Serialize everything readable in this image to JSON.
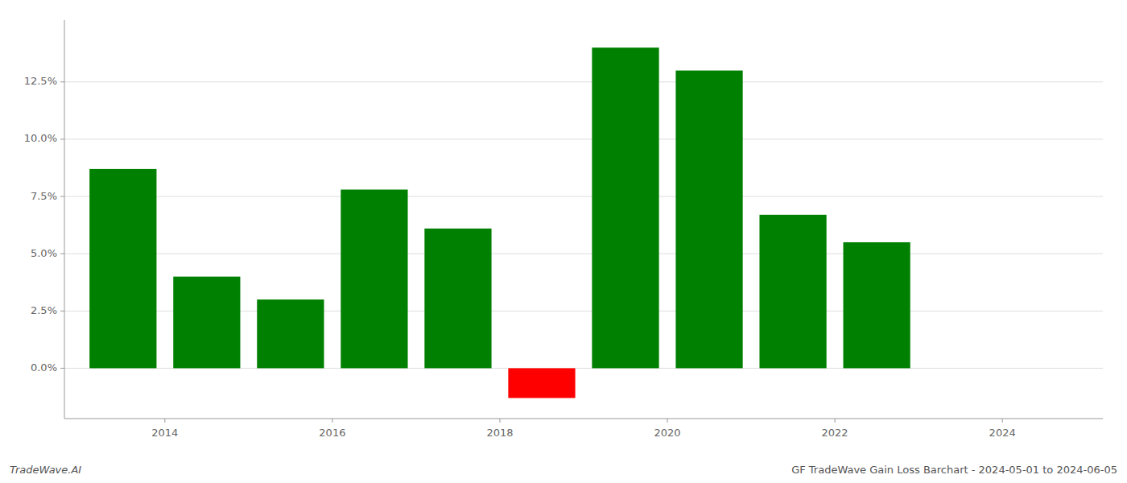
{
  "chart_data": {
    "type": "bar",
    "x": [
      2013.5,
      2014.5,
      2015.5,
      2016.5,
      2017.5,
      2018.5,
      2019.5,
      2020.5,
      2021.5,
      2022.5,
      2023.5
    ],
    "values": [
      0.087,
      0.04,
      0.03,
      0.078,
      0.061,
      -0.013,
      0.14,
      0.13,
      0.067,
      0.055,
      0.0
    ],
    "colors": [
      "#008000",
      "#008000",
      "#008000",
      "#008000",
      "#008000",
      "#ff0000",
      "#008000",
      "#008000",
      "#008000",
      "#008000",
      "#008000"
    ],
    "xlim": [
      2012.8,
      2025.2
    ],
    "xticks": [
      2014,
      2016,
      2018,
      2020,
      2022,
      2024
    ],
    "ylim": [
      -0.022,
      0.152
    ],
    "yticks": [
      {
        "value": 0.0,
        "label": "0.0%"
      },
      {
        "value": 0.025,
        "label": "2.5%"
      },
      {
        "value": 0.05,
        "label": "5.0%"
      },
      {
        "value": 0.075,
        "label": "7.5%"
      },
      {
        "value": 0.1,
        "label": "10.0%"
      },
      {
        "value": 0.125,
        "label": "12.5%"
      }
    ],
    "grid": true,
    "annotations": [
      "TradeWave.AI",
      "GF TradeWave Gain Loss Barchart - 2024-05-01 to 2024-06-05"
    ]
  }
}
